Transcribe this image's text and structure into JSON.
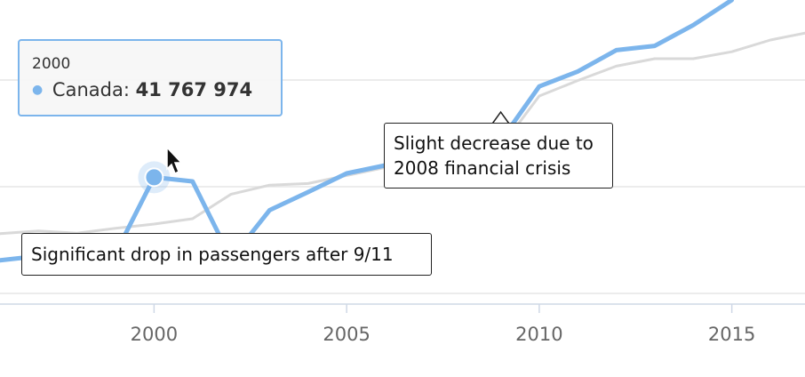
{
  "chart_data": {
    "type": "line",
    "xlim": [
      1996,
      2016.9
    ],
    "ylim": [
      18000000,
      75000000
    ],
    "xticks": [
      "2000",
      "2005",
      "2010",
      "2015"
    ],
    "grid": true,
    "series": [
      {
        "name": "Canada",
        "color": "#7cb5ec",
        "x": [
          1996,
          1997,
          1998,
          1999,
          2000,
          2001,
          2002,
          2003,
          2004,
          2005,
          2006,
          2007,
          2008,
          2009,
          2010,
          2011,
          2012,
          2013,
          2014,
          2015
        ],
        "y": [
          26200000,
          27000000,
          27500000,
          27500000,
          41767974,
          41000000,
          26500000,
          35600000,
          39000000,
          42500000,
          44000000,
          48500000,
          49500000,
          48600000,
          58800000,
          61600000,
          65600000,
          66400000,
          70300000,
          75000000
        ]
      },
      {
        "name": "",
        "color": "#d9d9d9",
        "x": [
          1996,
          1997,
          1998,
          1999,
          2000,
          2001,
          2002,
          2003,
          2004,
          2005,
          2006,
          2007,
          2008,
          2009,
          2010,
          2011,
          2012,
          2013,
          2014,
          2015,
          2016,
          2016.9
        ],
        "y": [
          31200000,
          31700000,
          31300000,
          32200000,
          33000000,
          34000000,
          38600000,
          40300000,
          40600000,
          42100000,
          43600000,
          46400000,
          48400000,
          47400000,
          57000000,
          59900000,
          62600000,
          64000000,
          64000000,
          65300000,
          67500000,
          68800000
        ]
      }
    ]
  },
  "tooltip": {
    "header": "2000",
    "series_name": "Canada:",
    "value": "41 767 974"
  },
  "annotations": [
    {
      "text": "Slight decrease due to\n2008 financial crisis"
    },
    {
      "text": "Significant drop in passengers after 9/11"
    }
  ]
}
